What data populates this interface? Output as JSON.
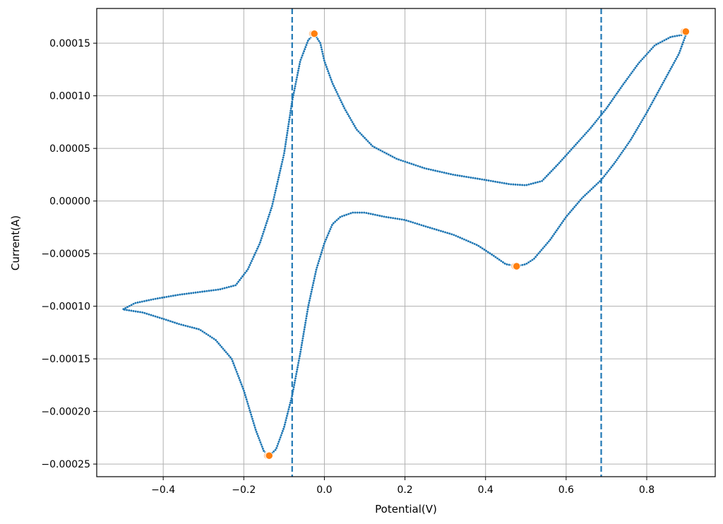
{
  "chart_data": {
    "type": "scatter",
    "title": "",
    "xlabel": "Potential(V)",
    "ylabel": "Current(A)",
    "xlim": [
      -0.565,
      0.97
    ],
    "ylim": [
      -0.000262,
      0.000183
    ],
    "grid": true,
    "x_ticks": [
      -0.4,
      -0.2,
      0.0,
      0.2,
      0.4,
      0.6,
      0.8
    ],
    "x_tick_labels": [
      "−0.4",
      "−0.2",
      "0.0",
      "0.2",
      "0.4",
      "0.6",
      "0.8"
    ],
    "y_ticks": [
      0.00015,
      0.0001,
      5e-05,
      0.0,
      -5e-05,
      -0.0001,
      -0.00015,
      -0.0002,
      -0.00025
    ],
    "y_tick_labels": [
      "0.00015",
      "0.00010",
      "0.00005",
      "0.00000",
      "−0.00005",
      "−0.00010",
      "−0.00015",
      "−0.00020",
      "−0.00025"
    ],
    "colors": {
      "curve": "#1f77b4",
      "peaks": "#ff7f0e",
      "vlines": "#1f77b4"
    },
    "vertical_lines": [
      {
        "x": -0.08,
        "style": "dashed"
      },
      {
        "x": 0.687,
        "style": "dashed"
      }
    ],
    "peaks": [
      {
        "x": -0.025,
        "y": 0.000159
      },
      {
        "x": 0.897,
        "y": 0.000161
      },
      {
        "x": -0.137,
        "y": -0.000242
      },
      {
        "x": 0.477,
        "y": -6.2e-05
      }
    ],
    "curve_keypoints": [
      [
        0.9,
        0.000161
      ],
      [
        0.88,
        0.00014
      ],
      [
        0.84,
        0.000112
      ],
      [
        0.8,
        8.4e-05
      ],
      [
        0.76,
        5.8e-05
      ],
      [
        0.72,
        3.6e-05
      ],
      [
        0.687,
        2e-05
      ],
      [
        0.64,
        3e-06
      ],
      [
        0.6,
        -1.5e-05
      ],
      [
        0.56,
        -3.7e-05
      ],
      [
        0.52,
        -5.5e-05
      ],
      [
        0.5,
        -6e-05
      ],
      [
        0.477,
        -6.2e-05
      ],
      [
        0.45,
        -6e-05
      ],
      [
        0.42,
        -5.2e-05
      ],
      [
        0.38,
        -4.2e-05
      ],
      [
        0.32,
        -3.2e-05
      ],
      [
        0.25,
        -2.4e-05
      ],
      [
        0.2,
        -1.8e-05
      ],
      [
        0.15,
        -1.5e-05
      ],
      [
        0.1,
        -1.1e-05
      ],
      [
        0.07,
        -1.1e-05
      ],
      [
        0.04,
        -1.5e-05
      ],
      [
        0.02,
        -2.2e-05
      ],
      [
        0.0,
        -4e-05
      ],
      [
        -0.02,
        -6.5e-05
      ],
      [
        -0.04,
        -0.0001
      ],
      [
        -0.06,
        -0.000145
      ],
      [
        -0.08,
        -0.000185
      ],
      [
        -0.1,
        -0.000215
      ],
      [
        -0.12,
        -0.000236
      ],
      [
        -0.137,
        -0.000242
      ],
      [
        -0.15,
        -0.000238
      ],
      [
        -0.17,
        -0.000218
      ],
      [
        -0.2,
        -0.00018
      ],
      [
        -0.23,
        -0.00015
      ],
      [
        -0.27,
        -0.000132
      ],
      [
        -0.31,
        -0.000122
      ],
      [
        -0.36,
        -0.000117
      ],
      [
        -0.4,
        -0.000112
      ],
      [
        -0.45,
        -0.000106
      ],
      [
        -0.5,
        -0.000103
      ],
      [
        -0.47,
        -9.7e-05
      ],
      [
        -0.42,
        -9.3e-05
      ],
      [
        -0.36,
        -8.9e-05
      ],
      [
        -0.3,
        -8.6e-05
      ],
      [
        -0.26,
        -8.4e-05
      ],
      [
        -0.22,
        -8e-05
      ],
      [
        -0.19,
        -6.5e-05
      ],
      [
        -0.16,
        -4e-05
      ],
      [
        -0.13,
        -5e-06
      ],
      [
        -0.1,
        4.5e-05
      ],
      [
        -0.08,
        9.5e-05
      ],
      [
        -0.06,
        0.000133
      ],
      [
        -0.04,
        0.000153
      ],
      [
        -0.025,
        0.000159
      ],
      [
        -0.01,
        0.00015
      ],
      [
        0.0,
        0.000133
      ],
      [
        0.02,
        0.000112
      ],
      [
        0.05,
        8.8e-05
      ],
      [
        0.08,
        6.8e-05
      ],
      [
        0.12,
        5.2e-05
      ],
      [
        0.18,
        4e-05
      ],
      [
        0.25,
        3.1e-05
      ],
      [
        0.32,
        2.5e-05
      ],
      [
        0.4,
        2e-05
      ],
      [
        0.46,
        1.6e-05
      ],
      [
        0.5,
        1.5e-05
      ],
      [
        0.54,
        1.9e-05
      ],
      [
        0.58,
        3.5e-05
      ],
      [
        0.62,
        5.2e-05
      ],
      [
        0.66,
        6.9e-05
      ],
      [
        0.7,
        8.8e-05
      ],
      [
        0.74,
        0.00011
      ],
      [
        0.78,
        0.000131
      ],
      [
        0.82,
        0.000148
      ],
      [
        0.86,
        0.000156
      ],
      [
        0.89,
        0.000158
      ],
      [
        0.9,
        0.000161
      ]
    ]
  }
}
